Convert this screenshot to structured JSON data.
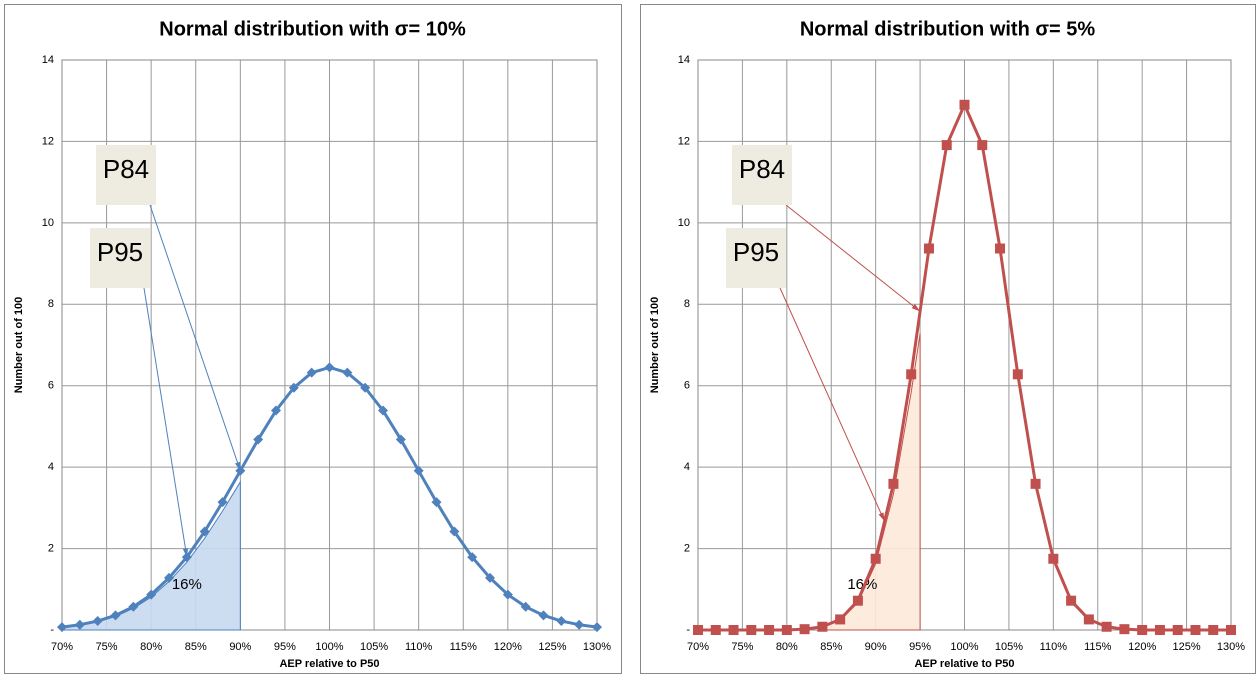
{
  "chart_data": [
    {
      "type": "line",
      "title": "Normal distribution with σ= 10%",
      "x_label": "AEP relative to P50",
      "y_label": "Number out of 100",
      "x": [
        70,
        72,
        74,
        76,
        78,
        80,
        82,
        84,
        86,
        88,
        90,
        92,
        94,
        96,
        98,
        100,
        102,
        104,
        106,
        108,
        110,
        112,
        114,
        116,
        118,
        120,
        122,
        124,
        126,
        128,
        130
      ],
      "series": [
        {
          "name": "σ= 10%",
          "color": "#4f81bd",
          "marker": "diamond",
          "values": [
            0.07,
            0.13,
            0.22,
            0.36,
            0.57,
            0.87,
            1.28,
            1.79,
            2.42,
            3.14,
            3.91,
            4.68,
            5.39,
            5.95,
            6.32,
            6.45,
            6.32,
            5.95,
            5.39,
            4.68,
            3.91,
            3.14,
            2.42,
            1.79,
            1.28,
            0.87,
            0.57,
            0.36,
            0.22,
            0.13,
            0.07
          ]
        }
      ],
      "xlim": [
        70,
        130
      ],
      "xticks": [
        {
          "value": 70,
          "label": "70%"
        },
        {
          "value": 75,
          "label": "75%"
        },
        {
          "value": 80,
          "label": "80%"
        },
        {
          "value": 85,
          "label": "85%"
        },
        {
          "value": 90,
          "label": "90%"
        },
        {
          "value": 95,
          "label": "95%"
        },
        {
          "value": 100,
          "label": "100%"
        },
        {
          "value": 105,
          "label": "105%"
        },
        {
          "value": 110,
          "label": "110%"
        },
        {
          "value": 115,
          "label": "115%"
        },
        {
          "value": 120,
          "label": "120%"
        },
        {
          "value": 125,
          "label": "125%"
        },
        {
          "value": 130,
          "label": "130%"
        }
      ],
      "ylim": [
        0,
        14
      ],
      "yticks": [
        {
          "value": 0,
          "label": "-"
        },
        2,
        4,
        6,
        8,
        10,
        12,
        14
      ],
      "grid": true,
      "shaded_x": [
        70,
        90
      ],
      "shade_color": "#c6d9f1",
      "area_label": "16%",
      "annotations": [
        {
          "text": "P84",
          "points_to": 90
        },
        {
          "text": "P95",
          "points_to": 84
        }
      ]
    },
    {
      "type": "line",
      "title": "Normal distribution with σ= 5%",
      "x_label": "AEP relative to P50",
      "y_label": "Number out of 100",
      "x": [
        70,
        72,
        74,
        76,
        78,
        80,
        82,
        84,
        86,
        88,
        90,
        92,
        94,
        96,
        98,
        100,
        102,
        104,
        106,
        108,
        110,
        112,
        114,
        116,
        118,
        120,
        122,
        124,
        126,
        128,
        130
      ],
      "series": [
        {
          "name": "σ= 5%",
          "color": "#c0504d",
          "marker": "square",
          "values": [
            0,
            0,
            0,
            0,
            0,
            0,
            0.02,
            0.08,
            0.26,
            0.72,
            1.75,
            3.59,
            6.28,
            9.37,
            11.91,
            12.9,
            11.91,
            9.37,
            6.28,
            3.59,
            1.75,
            0.72,
            0.26,
            0.08,
            0.02,
            0,
            0,
            0,
            0,
            0,
            0
          ]
        }
      ],
      "xlim": [
        70,
        130
      ],
      "xticks": [
        {
          "value": 70,
          "label": "70%"
        },
        {
          "value": 75,
          "label": "75%"
        },
        {
          "value": 80,
          "label": "80%"
        },
        {
          "value": 85,
          "label": "85%"
        },
        {
          "value": 90,
          "label": "90%"
        },
        {
          "value": 95,
          "label": "95%"
        },
        {
          "value": 100,
          "label": "100%"
        },
        {
          "value": 105,
          "label": "105%"
        },
        {
          "value": 110,
          "label": "110%"
        },
        {
          "value": 115,
          "label": "115%"
        },
        {
          "value": 120,
          "label": "120%"
        },
        {
          "value": 125,
          "label": "125%"
        },
        {
          "value": 130,
          "label": "130%"
        }
      ],
      "ylim": [
        0,
        14
      ],
      "yticks": [
        {
          "value": 0,
          "label": "-"
        },
        2,
        4,
        6,
        8,
        10,
        12,
        14
      ],
      "grid": true,
      "shaded_x": [
        84,
        95
      ],
      "shade_color": "#fde9d9",
      "area_label": "16%",
      "annotations": [
        {
          "text": "P84",
          "points_to": 95
        },
        {
          "text": "P95",
          "points_to": 91
        }
      ]
    }
  ]
}
